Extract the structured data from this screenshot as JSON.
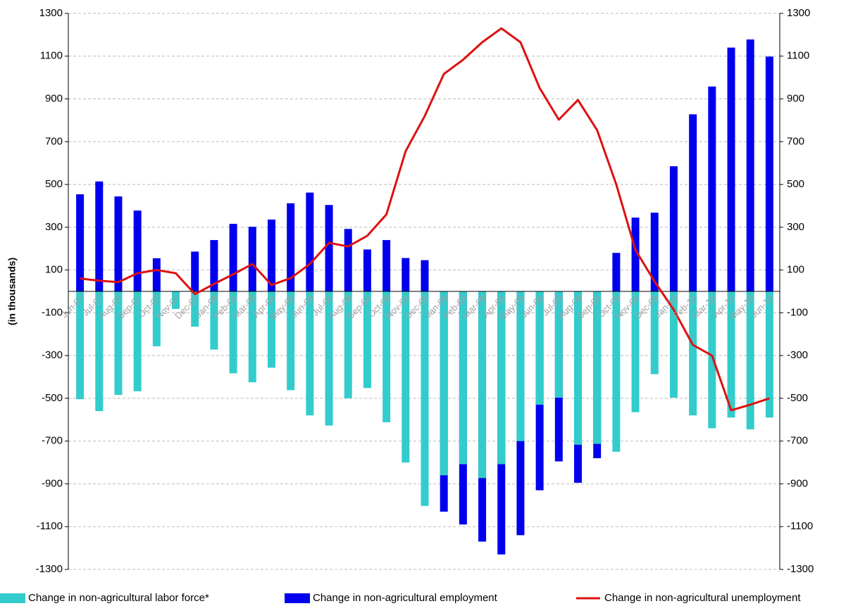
{
  "chart_data": {
    "type": "bar",
    "y_label": "(in thousands)",
    "categories": [
      "Jun-07",
      "Jul-07",
      "Aug-07",
      "Sep-07",
      "Oct-07",
      "Nov-07",
      "Dec-07",
      "Jan-08",
      "Feb-08",
      "Mar-08",
      "Apr-08",
      "May-08",
      "Jun-08",
      "Jul-08",
      "Aug-08",
      "Sep-08",
      "Oct-08",
      "Nov-08",
      "Dec-08",
      "Jan-09",
      "Feb-09",
      "Mar-09",
      "Apr-09",
      "May-09",
      "Jun-09",
      "Jul-09",
      "Aug-09",
      "Sep-09",
      "Oct-09",
      "Nov-09",
      "Dec-09",
      "Jan-10",
      "Feb-10",
      "Mar-10",
      "Apr-10",
      "May-10",
      "Jun-10"
    ],
    "series": [
      {
        "name": "Change in non-agricultural employment",
        "color": "#0000ee",
        "kind": "bar",
        "values": [
          454,
          514,
          444,
          378,
          155,
          0,
          186,
          240,
          316,
          302,
          336,
          412,
          462,
          404,
          292,
          196,
          240,
          156,
          146,
          -1030,
          -1090,
          -1170,
          -1230,
          -1140,
          -930,
          -795,
          -895,
          -780,
          180,
          345,
          368,
          585,
          828,
          958,
          1140,
          1178,
          1098
        ]
      },
      {
        "name": "Change in non-agricultural labor force*",
        "color": "#33cccc",
        "kind": "bar",
        "values": [
          -504,
          -560,
          -484,
          -467,
          -257,
          -82,
          -165,
          -272,
          -383,
          -425,
          -357,
          -462,
          -580,
          -627,
          -500,
          -452,
          -612,
          -800,
          -1003,
          -860,
          -808,
          -873,
          -808,
          -700,
          -530,
          -497,
          -717,
          -713,
          -750,
          -565,
          -387,
          -497,
          -580,
          -640,
          -590,
          -645,
          -590
        ]
      },
      {
        "name": "Change in non-agricultural unemployment",
        "color": "#dd1111",
        "kind": "line",
        "values": [
          60,
          50,
          43,
          85,
          100,
          85,
          -13,
          35,
          80,
          128,
          30,
          62,
          128,
          227,
          210,
          260,
          360,
          655,
          820,
          1017,
          1083,
          1165,
          1230,
          1165,
          951,
          803,
          895,
          754,
          500,
          194,
          46,
          -86,
          -250,
          -300,
          -556,
          -530,
          -500
        ]
      }
    ],
    "legend_order": [
      1,
      0,
      2
    ],
    "ylim": [
      -1300,
      1300
    ],
    "yticks": [
      -1300,
      -1100,
      -900,
      -700,
      -500,
      -300,
      -100,
      100,
      300,
      500,
      700,
      900,
      1100,
      1300
    ],
    "y2lim": [
      -1300,
      1300
    ],
    "y2ticks": [
      -1300,
      -1100,
      -900,
      -700,
      -500,
      -300,
      -100,
      100,
      300,
      500,
      700,
      900,
      1100,
      1300
    ],
    "grid": true
  }
}
